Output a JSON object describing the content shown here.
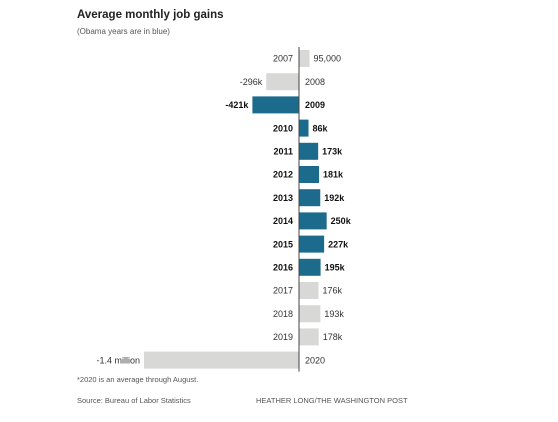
{
  "header": {
    "title": "Average monthly job gains",
    "subtitle": "(Obama years are in blue)"
  },
  "footer": {
    "footnote": "*2020 is an average through August.",
    "source": "Source: Bureau of Labor Statistics",
    "credit": "HEATHER LONG/THE WASHINGTON POST"
  },
  "colors": {
    "obama": "#1c6b8c",
    "other": "#d8d8d6",
    "axis": "#444444"
  },
  "chart_data": {
    "type": "bar",
    "orientation": "horizontal",
    "title": "Average monthly job gains",
    "subtitle": "(Obama years are in blue)",
    "xlabel": "",
    "ylabel": "",
    "grid": false,
    "xlim": [
      -1400000,
      350000
    ],
    "categories": [
      "2007",
      "2008",
      "2009",
      "2010",
      "2011",
      "2012",
      "2013",
      "2014",
      "2015",
      "2016",
      "2017",
      "2018",
      "2019",
      "2020"
    ],
    "values": [
      95000,
      -296000,
      -421000,
      86000,
      173000,
      181000,
      192000,
      250000,
      227000,
      195000,
      176000,
      193000,
      178000,
      -1400000
    ],
    "value_labels": [
      "95,000",
      "-296k",
      "-421k",
      "86k",
      "173k",
      "181k",
      "192k",
      "250k",
      "227k",
      "195k",
      "176k",
      "193k",
      "178k",
      "-1.4 million"
    ],
    "obama_years": [
      false,
      false,
      true,
      true,
      true,
      true,
      true,
      true,
      true,
      true,
      false,
      false,
      false,
      false
    ]
  }
}
